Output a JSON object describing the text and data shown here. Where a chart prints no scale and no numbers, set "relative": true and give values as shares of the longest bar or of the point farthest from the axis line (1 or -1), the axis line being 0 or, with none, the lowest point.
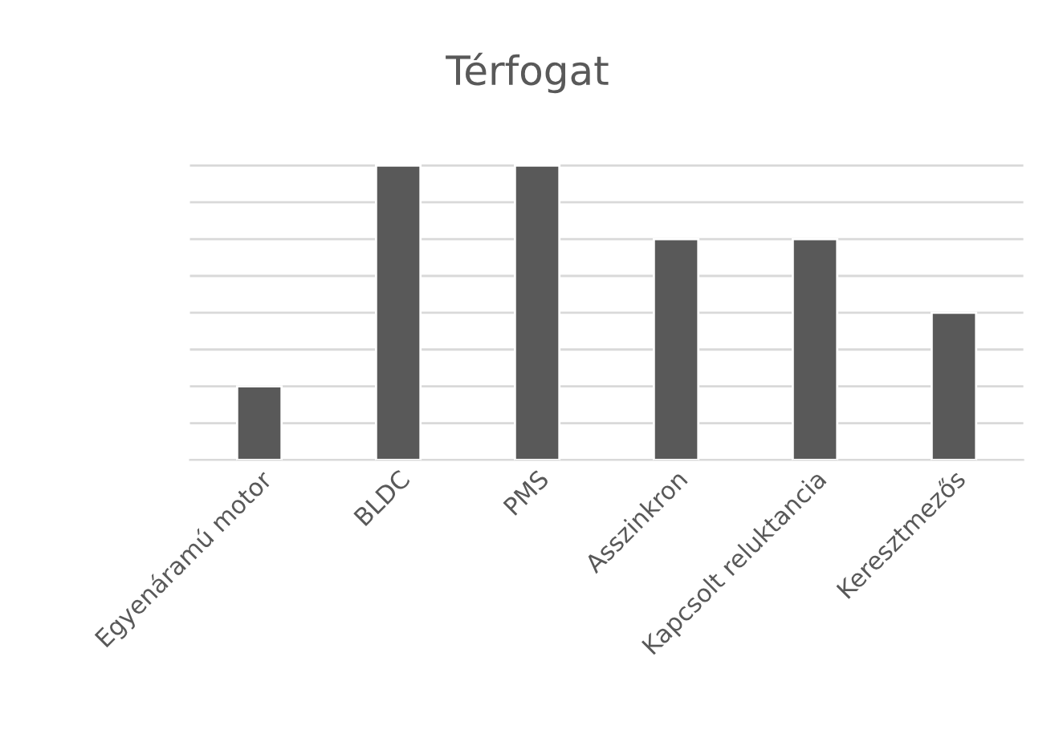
{
  "chart_data": {
    "type": "bar",
    "title": "Térfogat",
    "categories": [
      "Egyenáramú motor",
      "BLDC",
      "PMS",
      "Asszinkron",
      "Kapcsolt reluktancia",
      "Keresztmezős"
    ],
    "values": [
      0.25,
      1,
      1,
      0.75,
      0.75,
      0.5
    ],
    "relative": true,
    "color": "#595959",
    "grid": "y"
  }
}
